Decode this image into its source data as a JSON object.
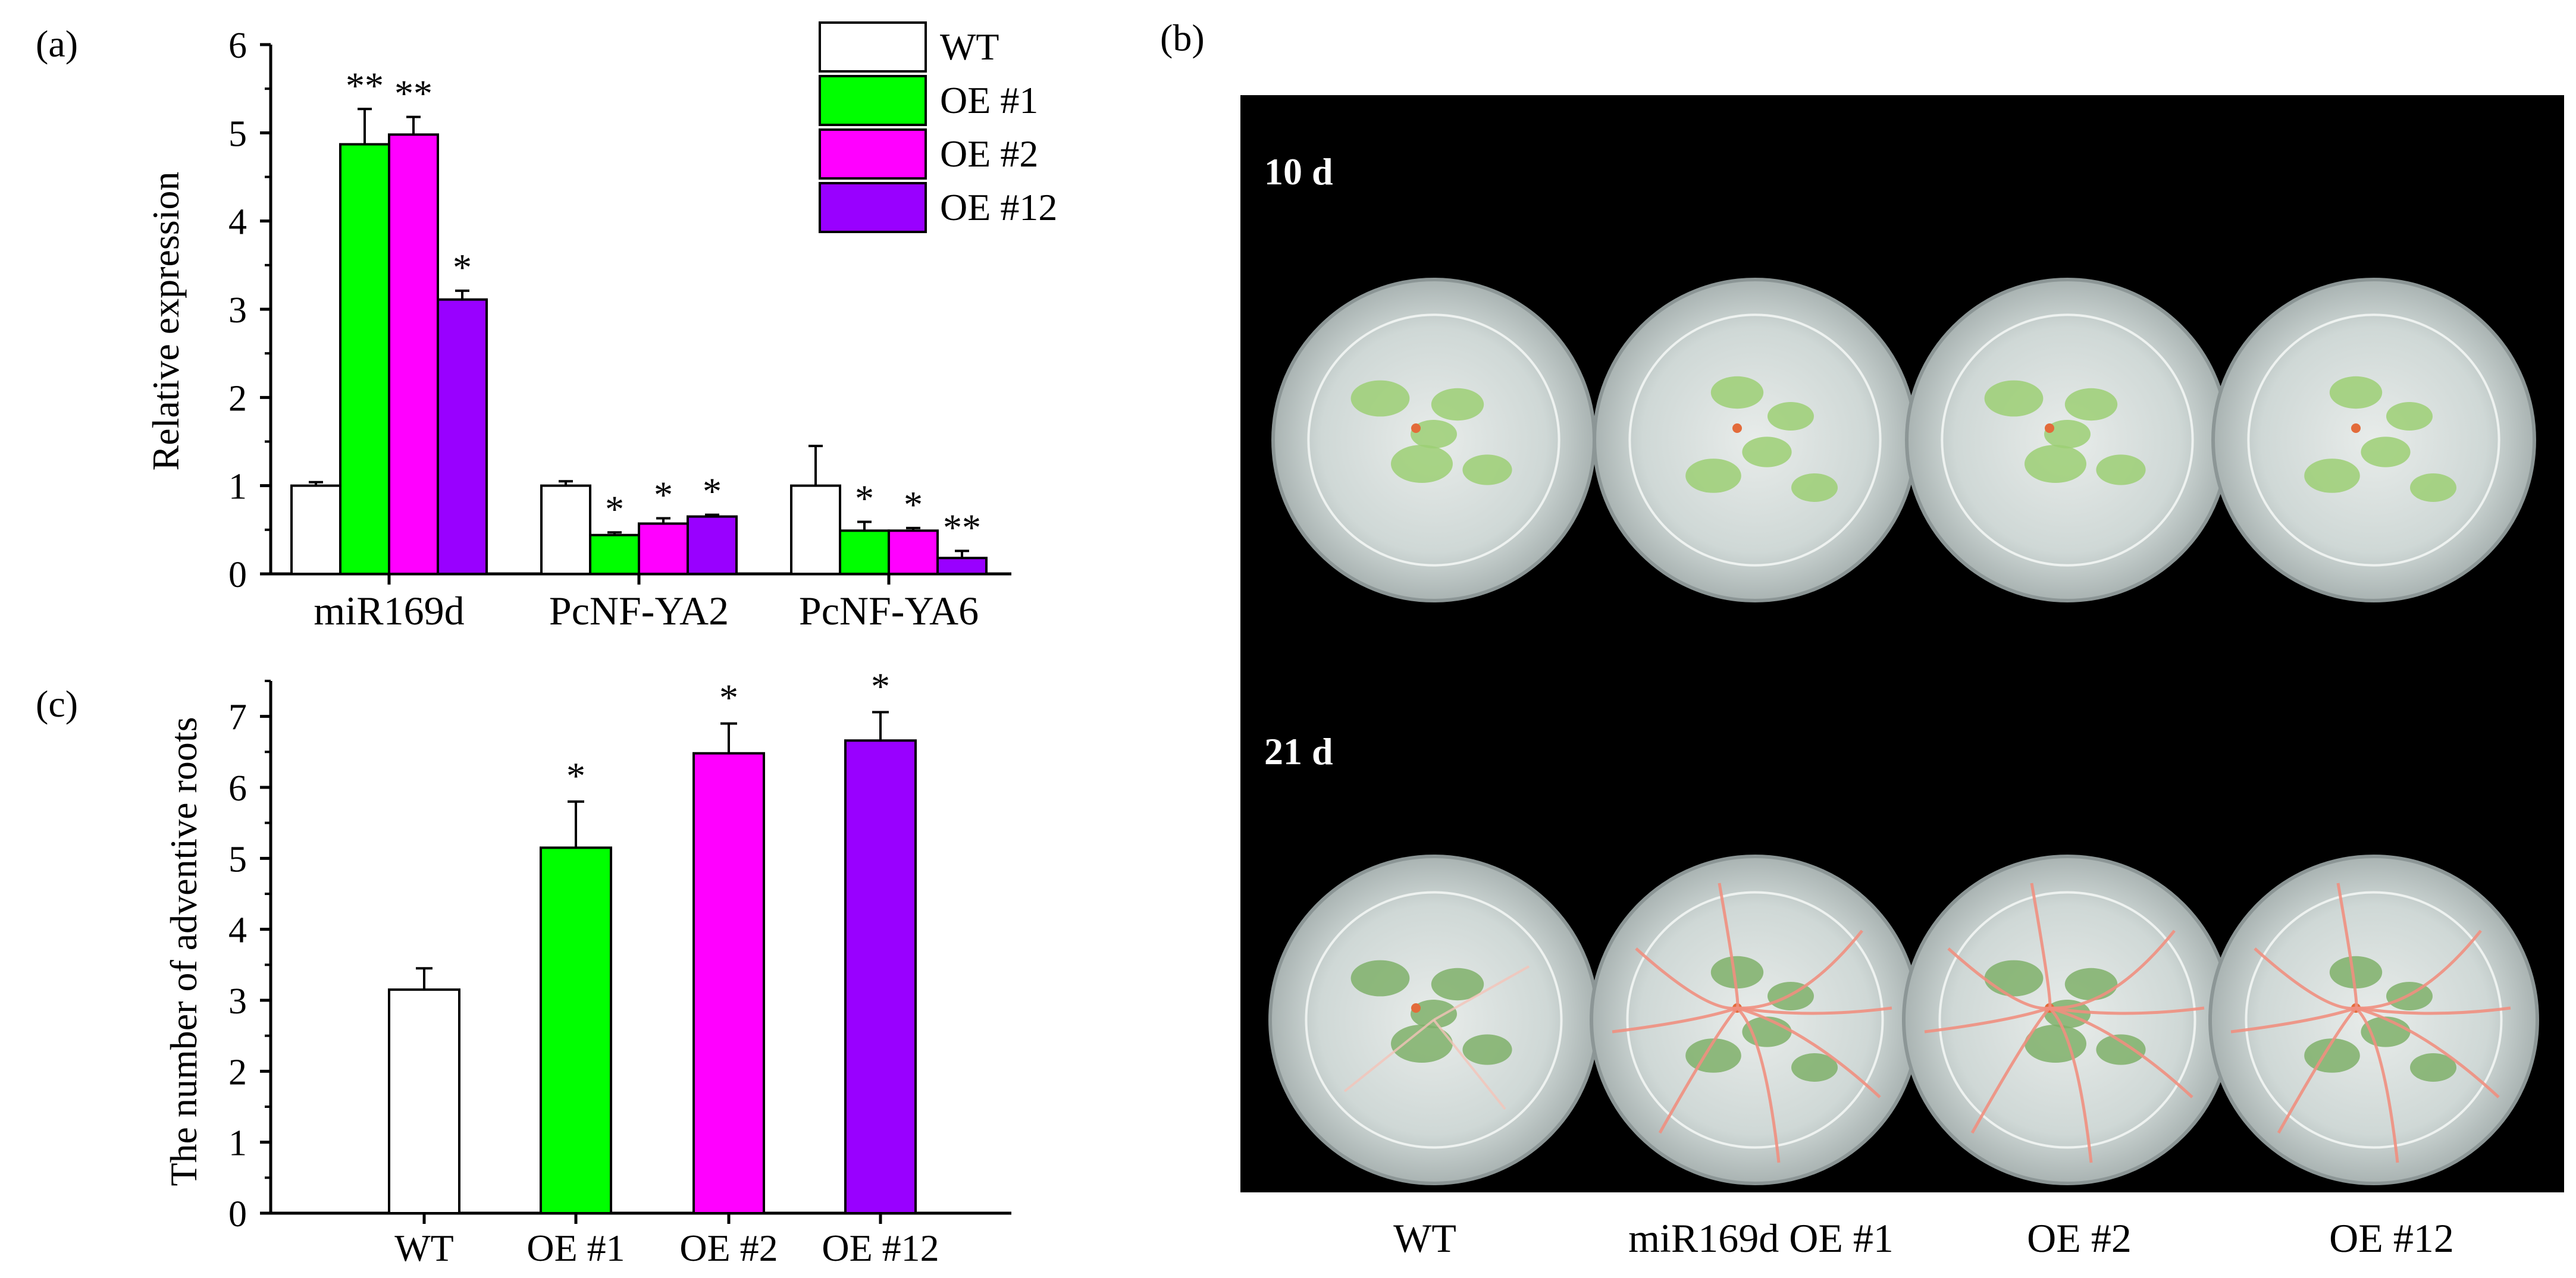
{
  "panel_labels": {
    "a": "(a)",
    "b": "(b)",
    "c": "(c)"
  },
  "colors": {
    "WT": "#ffffff",
    "OE #1": "#00ff00",
    "OE #2": "#ff00ff",
    "OE #12": "#9900ff",
    "photo_bg": "#000000"
  },
  "chart_data": [
    {
      "id": "a",
      "type": "bar",
      "title": "",
      "xlabel": "",
      "ylabel": "Relative expression",
      "ylim": [
        0,
        6
      ],
      "yticks": [
        0,
        1,
        2,
        3,
        4,
        5,
        6
      ],
      "categories": [
        "miR169d",
        "PcNF-YA2",
        "PcNF-YA6"
      ],
      "legend_position": "top-right",
      "series": [
        {
          "name": "WT",
          "color": "#ffffff",
          "values": [
            1.0,
            1.0,
            1.0
          ],
          "errors": [
            0.04,
            0.05,
            0.45
          ],
          "annotations": [
            "",
            "",
            ""
          ]
        },
        {
          "name": "OE #1",
          "color": "#00ff00",
          "values": [
            4.87,
            0.44,
            0.49
          ],
          "errors": [
            0.4,
            0.03,
            0.1
          ],
          "annotations": [
            "**",
            "*",
            "*"
          ]
        },
        {
          "name": "OE #2",
          "color": "#ff00ff",
          "values": [
            4.98,
            0.57,
            0.49
          ],
          "errors": [
            0.2,
            0.06,
            0.03
          ],
          "annotations": [
            "**",
            "*",
            "*"
          ]
        },
        {
          "name": "OE #12",
          "color": "#9900ff",
          "values": [
            3.11,
            0.65,
            0.18
          ],
          "errors": [
            0.1,
            0.02,
            0.08
          ],
          "annotations": [
            "*",
            "*",
            "**"
          ]
        }
      ]
    },
    {
      "id": "c",
      "type": "bar",
      "title": "",
      "xlabel": "",
      "ylabel": "The number of adventive roots",
      "ylim": [
        0,
        7.5
      ],
      "yticks": [
        0,
        1,
        2,
        3,
        4,
        5,
        6,
        7
      ],
      "categories": [
        "WT",
        "OE #1",
        "OE #2",
        "OE #12"
      ],
      "values": [
        3.15,
        5.15,
        6.48,
        6.66
      ],
      "errors": [
        0.3,
        0.65,
        0.42,
        0.4
      ],
      "colors": [
        "#ffffff",
        "#00ff00",
        "#ff00ff",
        "#9900ff"
      ],
      "annotations": [
        "",
        "*",
        "*",
        "*"
      ]
    }
  ],
  "photo": {
    "rows": [
      {
        "label": "10 d",
        "stage": "early"
      },
      {
        "label": "21 d",
        "stage": "rooted"
      }
    ],
    "bottle_labels": [
      "WT",
      "miR169d OE #1",
      "OE #2",
      "OE #12"
    ]
  }
}
